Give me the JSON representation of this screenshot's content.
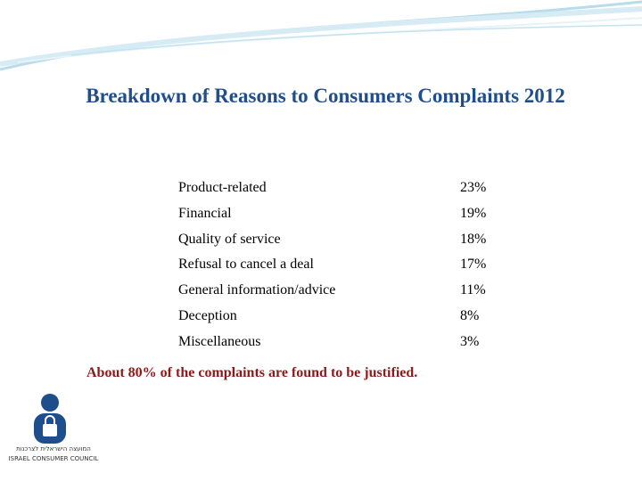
{
  "header": {
    "title": "Breakdown of Reasons to Consumers Complaints 2012"
  },
  "table": {
    "rows": [
      [
        "Product-related",
        "23%"
      ],
      [
        "Financial",
        "19%"
      ],
      [
        "Quality of service",
        "18%"
      ],
      [
        "Refusal to cancel a deal",
        "17%"
      ],
      [
        "General information/advice",
        "11%"
      ],
      [
        "Deception",
        "8%"
      ],
      [
        "Miscellaneous",
        "3%"
      ]
    ]
  },
  "note": "About 80% of the complaints are found to be justified.",
  "logo": {
    "hebrew": "המועצה הישראלית לצרכנות",
    "english": "ISRAEL CONSUMER COUNCIL"
  }
}
